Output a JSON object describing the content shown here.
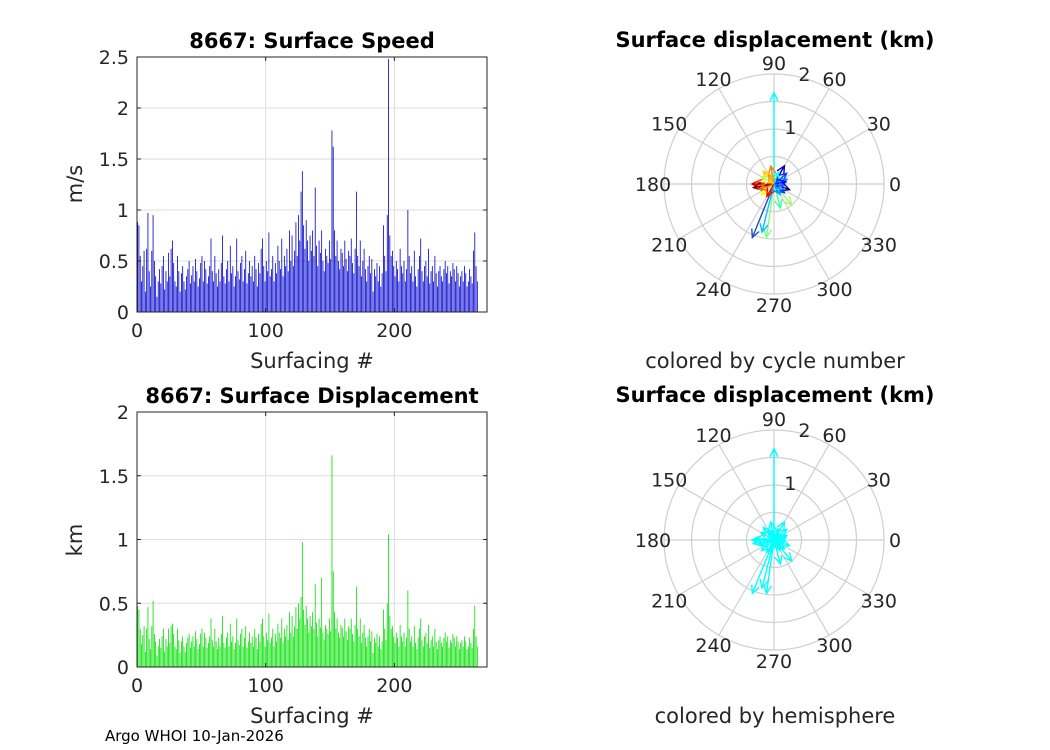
{
  "footer": "Argo WHOI 10-Jan-2026",
  "chart_data": [
    {
      "type": "bar",
      "id": "speed",
      "title": "8667: Surface Speed",
      "xlabel": "Surfacing #",
      "ylabel": "m/s",
      "xlim": [
        0,
        272
      ],
      "ylim": [
        0,
        2.5
      ],
      "xticks": [
        "0",
        "100",
        "200"
      ],
      "xtick_values": [
        0,
        100,
        200
      ],
      "yticks": [
        "0",
        "0.5",
        "1",
        "1.5",
        "2",
        "2.5"
      ],
      "ytick_values": [
        0,
        0.5,
        1,
        1.5,
        2,
        2.5
      ],
      "color": "#0000cc",
      "grid": true,
      "values": [
        0.88,
        0.85,
        0.55,
        0.3,
        0.45,
        0.6,
        0.2,
        0.62,
        0.97,
        0.4,
        0.25,
        0.6,
        0.95,
        0.5,
        0.35,
        0.15,
        0.3,
        0.42,
        0.28,
        0.45,
        0.55,
        0.22,
        0.4,
        0.3,
        0.58,
        0.35,
        0.62,
        0.7,
        0.48,
        0.3,
        0.25,
        0.55,
        0.4,
        0.2,
        0.38,
        0.45,
        0.3,
        0.22,
        0.35,
        0.42,
        0.5,
        0.28,
        0.36,
        0.45,
        0.3,
        0.52,
        0.4,
        0.25,
        0.33,
        0.48,
        0.55,
        0.3,
        0.5,
        0.42,
        0.28,
        0.35,
        0.45,
        0.72,
        0.4,
        0.3,
        0.55,
        0.38,
        0.25,
        0.42,
        0.3,
        0.48,
        0.75,
        0.35,
        0.28,
        0.42,
        0.5,
        0.3,
        0.65,
        0.38,
        0.45,
        0.25,
        0.35,
        0.72,
        0.4,
        0.32,
        0.48,
        0.55,
        0.3,
        0.42,
        0.6,
        0.28,
        0.38,
        0.5,
        0.35,
        0.45,
        0.3,
        0.55,
        0.42,
        0.25,
        0.48,
        0.38,
        0.62,
        0.72,
        0.45,
        0.3,
        0.5,
        0.4,
        0.78,
        0.35,
        0.42,
        0.55,
        0.3,
        0.48,
        0.38,
        0.65,
        0.5,
        0.42,
        0.72,
        0.35,
        0.55,
        0.45,
        0.62,
        0.4,
        0.8,
        0.5,
        0.75,
        0.45,
        0.6,
        0.88,
        0.55,
        0.95,
        0.7,
        1.18,
        1.38,
        0.85,
        0.62,
        0.9,
        0.7,
        0.5,
        0.75,
        0.6,
        0.8,
        0.55,
        1.22,
        0.65,
        0.45,
        0.7,
        0.58,
        0.8,
        0.5,
        0.4,
        0.62,
        0.55,
        0.48,
        0.7,
        0.52,
        1.78,
        1.62,
        0.8,
        0.55,
        0.7,
        0.5,
        0.42,
        0.62,
        0.58,
        0.45,
        0.7,
        0.52,
        0.4,
        0.6,
        0.55,
        0.72,
        0.48,
        0.38,
        0.62,
        1.18,
        0.55,
        0.45,
        0.7,
        0.35,
        0.5,
        0.62,
        0.42,
        0.3,
        0.45,
        0.55,
        0.38,
        0.52,
        0.2,
        0.42,
        0.35,
        0.48,
        0.3,
        0.45,
        0.25,
        0.38,
        0.85,
        0.55,
        0.4,
        0.95,
        2.48,
        0.75,
        0.55,
        0.6,
        0.45,
        0.35,
        0.5,
        0.42,
        0.3,
        0.62,
        0.45,
        0.38,
        0.5,
        0.3,
        0.42,
        1.0,
        0.55,
        0.38,
        0.45,
        0.3,
        0.6,
        0.35,
        0.25,
        0.42,
        0.55,
        0.72,
        0.4,
        0.3,
        0.45,
        0.5,
        0.35,
        0.62,
        0.28,
        0.4,
        0.45,
        0.3,
        0.55,
        0.38,
        0.25,
        0.4,
        0.45,
        0.35,
        0.3,
        0.42,
        0.5,
        0.38,
        0.45,
        0.28,
        0.4,
        0.35,
        0.48,
        0.42,
        0.3,
        0.45,
        0.38,
        0.25,
        0.35,
        0.4,
        0.3,
        0.45,
        0.38,
        0.25,
        0.3,
        0.42,
        0.35,
        0.28,
        0.6,
        0.78,
        0.45,
        0.3
      ]
    },
    {
      "type": "bar",
      "id": "displacement",
      "title": "8667: Surface Displacement",
      "xlabel": "Surfacing #",
      "ylabel": "km",
      "xlim": [
        0,
        272
      ],
      "ylim": [
        0,
        2
      ],
      "xticks": [
        "0",
        "100",
        "200"
      ],
      "xtick_values": [
        0,
        100,
        200
      ],
      "yticks": [
        "0",
        "0.5",
        "1",
        "1.5",
        "2"
      ],
      "ytick_values": [
        0,
        0.5,
        1,
        1.5,
        2
      ],
      "color": "#00e000",
      "grid": true,
      "values": [
        0.48,
        0.45,
        0.3,
        0.18,
        0.25,
        0.32,
        0.12,
        0.3,
        0.47,
        0.22,
        0.14,
        0.32,
        0.52,
        0.26,
        0.2,
        0.09,
        0.16,
        0.22,
        0.15,
        0.24,
        0.3,
        0.12,
        0.22,
        0.16,
        0.3,
        0.19,
        0.32,
        0.34,
        0.26,
        0.16,
        0.14,
        0.3,
        0.21,
        0.11,
        0.2,
        0.24,
        0.16,
        0.12,
        0.19,
        0.23,
        0.26,
        0.15,
        0.2,
        0.24,
        0.16,
        0.28,
        0.22,
        0.14,
        0.18,
        0.26,
        0.3,
        0.16,
        0.27,
        0.23,
        0.15,
        0.19,
        0.24,
        0.38,
        0.21,
        0.16,
        0.3,
        0.2,
        0.14,
        0.23,
        0.16,
        0.26,
        0.4,
        0.19,
        0.15,
        0.23,
        0.27,
        0.16,
        0.34,
        0.2,
        0.24,
        0.14,
        0.19,
        0.38,
        0.21,
        0.17,
        0.26,
        0.3,
        0.16,
        0.23,
        0.32,
        0.15,
        0.2,
        0.27,
        0.19,
        0.24,
        0.16,
        0.3,
        0.23,
        0.14,
        0.26,
        0.2,
        0.34,
        0.38,
        0.24,
        0.16,
        0.27,
        0.21,
        0.42,
        0.19,
        0.23,
        0.3,
        0.16,
        0.26,
        0.2,
        0.34,
        0.27,
        0.23,
        0.38,
        0.19,
        0.3,
        0.24,
        0.33,
        0.21,
        0.43,
        0.27,
        0.4,
        0.24,
        0.32,
        0.47,
        0.3,
        0.5,
        0.38,
        0.55,
        0.98,
        0.45,
        0.33,
        0.48,
        0.38,
        0.27,
        0.4,
        0.32,
        0.43,
        0.3,
        0.65,
        0.35,
        0.24,
        0.38,
        0.31,
        0.7,
        0.27,
        0.21,
        0.33,
        0.3,
        0.26,
        0.38,
        0.28,
        1.66,
        0.75,
        0.43,
        0.3,
        0.38,
        0.27,
        0.23,
        0.33,
        0.31,
        0.24,
        0.38,
        0.28,
        0.21,
        0.32,
        0.3,
        0.38,
        0.26,
        0.2,
        0.33,
        0.63,
        0.3,
        0.24,
        0.38,
        0.19,
        0.27,
        0.33,
        0.23,
        0.16,
        0.24,
        0.3,
        0.2,
        0.28,
        0.11,
        0.23,
        0.19,
        0.26,
        0.16,
        0.24,
        0.14,
        0.2,
        0.45,
        0.3,
        0.21,
        0.5,
        1.04,
        0.4,
        0.3,
        0.32,
        0.24,
        0.19,
        0.27,
        0.23,
        0.16,
        0.33,
        0.24,
        0.2,
        0.27,
        0.16,
        0.23,
        0.6,
        0.3,
        0.2,
        0.24,
        0.16,
        0.32,
        0.19,
        0.14,
        0.23,
        0.3,
        0.38,
        0.21,
        0.16,
        0.24,
        0.27,
        0.19,
        0.33,
        0.15,
        0.21,
        0.24,
        0.16,
        0.3,
        0.2,
        0.14,
        0.21,
        0.24,
        0.19,
        0.16,
        0.23,
        0.27,
        0.2,
        0.24,
        0.15,
        0.21,
        0.19,
        0.26,
        0.23,
        0.16,
        0.24,
        0.2,
        0.14,
        0.19,
        0.21,
        0.16,
        0.24,
        0.2,
        0.14,
        0.16,
        0.23,
        0.19,
        0.15,
        0.3,
        0.48,
        0.24,
        0.16
      ]
    },
    {
      "type": "polar",
      "id": "polar-cycle",
      "title": "Surface displacement (km)",
      "caption": "colored by cycle number",
      "rmax": 2,
      "rtick_labels": [
        "1",
        "2"
      ],
      "rtick_values": [
        1,
        2
      ],
      "angle_labels": [
        "0",
        "30",
        "60",
        "90",
        "120",
        "150",
        "180",
        "210",
        "240",
        "270",
        "300",
        "330"
      ],
      "angle_values": [
        0,
        30,
        60,
        90,
        120,
        150,
        180,
        210,
        240,
        270,
        300,
        330
      ],
      "color_mode": "cycle",
      "vectors": [
        {
          "a": 90,
          "r": 1.66,
          "c": "#00ffff"
        },
        {
          "a": 248,
          "r": 1.05,
          "c": "#1f4fbf"
        },
        {
          "a": 262,
          "r": 0.98,
          "c": "#7fff7f"
        },
        {
          "a": 256,
          "r": 0.9,
          "c": "#00c0ff"
        },
        {
          "a": 285,
          "r": 0.45,
          "c": "#3fff9f"
        },
        {
          "a": 310,
          "r": 0.5,
          "c": "#a0ff60"
        },
        {
          "a": 180,
          "r": 0.4,
          "c": "#cc0000"
        },
        {
          "a": 175,
          "r": 0.35,
          "c": "#ff4000"
        },
        {
          "a": 190,
          "r": 0.38,
          "c": "#800000"
        },
        {
          "a": 60,
          "r": 0.38,
          "c": "#0000cc"
        },
        {
          "a": 40,
          "r": 0.3,
          "c": "#0040ff"
        },
        {
          "a": 100,
          "r": 0.33,
          "c": "#ff8000"
        },
        {
          "a": 130,
          "r": 0.3,
          "c": "#ffd000"
        },
        {
          "a": 20,
          "r": 0.25,
          "c": "#0080ff"
        },
        {
          "a": 340,
          "r": 0.3,
          "c": "#000080"
        },
        {
          "a": 320,
          "r": 0.25,
          "c": "#003fff"
        },
        {
          "a": 220,
          "r": 0.3,
          "c": "#ffff00"
        },
        {
          "a": 200,
          "r": 0.28,
          "c": "#ff6000"
        },
        {
          "a": 150,
          "r": 0.27,
          "c": "#c0ff40"
        },
        {
          "a": 70,
          "r": 0.22,
          "c": "#00ffff"
        },
        {
          "a": 240,
          "r": 0.26,
          "c": "#ff0000"
        },
        {
          "a": 10,
          "r": 0.22,
          "c": "#0000ff"
        },
        {
          "a": 350,
          "r": 0.18,
          "c": "#2060ff"
        },
        {
          "a": 120,
          "r": 0.2,
          "c": "#ffa000"
        },
        {
          "a": 300,
          "r": 0.22,
          "c": "#00a0ff"
        }
      ]
    },
    {
      "type": "polar",
      "id": "polar-hemisphere",
      "title": "Surface displacement (km)",
      "caption": "colored by hemisphere",
      "rmax": 2,
      "rtick_labels": [
        "1",
        "2"
      ],
      "rtick_values": [
        1,
        2
      ],
      "angle_labels": [
        "0",
        "30",
        "60",
        "90",
        "120",
        "150",
        "180",
        "210",
        "240",
        "270",
        "300",
        "330"
      ],
      "angle_values": [
        0,
        30,
        60,
        90,
        120,
        150,
        180,
        210,
        240,
        270,
        300,
        330
      ],
      "color_mode": "hemisphere",
      "color": "#00ffff",
      "vectors": [
        {
          "a": 90,
          "r": 1.66
        },
        {
          "a": 248,
          "r": 1.05
        },
        {
          "a": 262,
          "r": 0.98
        },
        {
          "a": 256,
          "r": 0.9
        },
        {
          "a": 285,
          "r": 0.45
        },
        {
          "a": 310,
          "r": 0.5
        },
        {
          "a": 180,
          "r": 0.4
        },
        {
          "a": 175,
          "r": 0.35
        },
        {
          "a": 190,
          "r": 0.38
        },
        {
          "a": 60,
          "r": 0.38
        },
        {
          "a": 40,
          "r": 0.3
        },
        {
          "a": 100,
          "r": 0.33
        },
        {
          "a": 130,
          "r": 0.3
        },
        {
          "a": 20,
          "r": 0.25
        },
        {
          "a": 340,
          "r": 0.3
        },
        {
          "a": 320,
          "r": 0.25
        },
        {
          "a": 220,
          "r": 0.3
        },
        {
          "a": 200,
          "r": 0.28
        },
        {
          "a": 150,
          "r": 0.27
        },
        {
          "a": 70,
          "r": 0.22
        },
        {
          "a": 240,
          "r": 0.26
        },
        {
          "a": 10,
          "r": 0.22
        },
        {
          "a": 350,
          "r": 0.18
        },
        {
          "a": 120,
          "r": 0.2
        },
        {
          "a": 300,
          "r": 0.22
        }
      ]
    }
  ]
}
